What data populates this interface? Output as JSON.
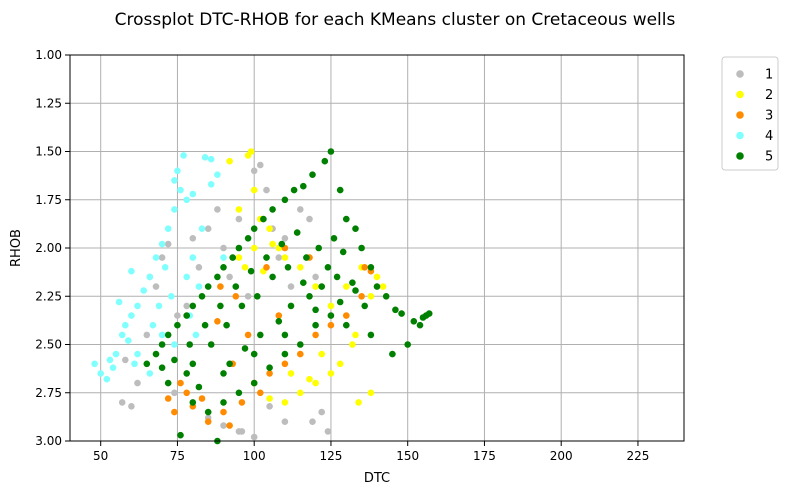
{
  "chart_data": {
    "type": "scatter",
    "title": "Crossplot DTC-RHOB for each KMeans cluster on Cretaceous wells",
    "xlabel": "DTC",
    "ylabel": "RHOB",
    "xlim": [
      40,
      240
    ],
    "ylim": [
      3.0,
      1.0
    ],
    "y_inverted": true,
    "grid": true,
    "legend_position": "outside-top-right",
    "x_ticks": [
      50,
      75,
      100,
      125,
      150,
      175,
      200,
      225
    ],
    "x_tick_labels": [
      "50",
      "75",
      "100",
      "125",
      "150",
      "175",
      "200",
      "225"
    ],
    "y_ticks": [
      1.0,
      1.25,
      1.5,
      1.75,
      2.0,
      2.25,
      2.5,
      2.75,
      3.0
    ],
    "y_tick_labels": [
      "1.00",
      "1.25",
      "1.50",
      "1.75",
      "2.00",
      "2.25",
      "2.50",
      "2.75",
      "3.00"
    ],
    "series": [
      {
        "name": "1",
        "color": "#bdbdbd",
        "points": [
          [
            58,
            2.58
          ],
          [
            62,
            2.7
          ],
          [
            65,
            2.45
          ],
          [
            68,
            2.2
          ],
          [
            70,
            2.05
          ],
          [
            72,
            1.98
          ],
          [
            75,
            2.35
          ],
          [
            78,
            2.3
          ],
          [
            80,
            1.95
          ],
          [
            82,
            2.1
          ],
          [
            85,
            1.9
          ],
          [
            88,
            1.8
          ],
          [
            90,
            2.0
          ],
          [
            92,
            2.15
          ],
          [
            95,
            1.85
          ],
          [
            98,
            2.25
          ],
          [
            100,
            1.6
          ],
          [
            102,
            1.57
          ],
          [
            104,
            1.7
          ],
          [
            106,
            1.9
          ],
          [
            108,
            2.05
          ],
          [
            110,
            1.95
          ],
          [
            112,
            2.2
          ],
          [
            115,
            1.8
          ],
          [
            118,
            1.85
          ],
          [
            120,
            2.15
          ],
          [
            122,
            2.85
          ],
          [
            124,
            2.95
          ],
          [
            110,
            2.9
          ],
          [
            100,
            2.98
          ],
          [
            95,
            2.95
          ],
          [
            90,
            2.92
          ],
          [
            85,
            2.88
          ],
          [
            60,
            2.82
          ],
          [
            57,
            2.8
          ],
          [
            66,
            2.15
          ],
          [
            96,
            2.95
          ],
          [
            105,
            2.82
          ],
          [
            119,
            2.9
          ],
          [
            74,
            2.75
          ]
        ]
      },
      {
        "name": "2",
        "color": "#ffff00",
        "points": [
          [
            92,
            1.55
          ],
          [
            98,
            1.52
          ],
          [
            99,
            1.5
          ],
          [
            100,
            1.7
          ],
          [
            95,
            1.8
          ],
          [
            102,
            1.85
          ],
          [
            105,
            1.9
          ],
          [
            108,
            2.0
          ],
          [
            110,
            2.05
          ],
          [
            100,
            2.0
          ],
          [
            97,
            2.1
          ],
          [
            115,
            2.1
          ],
          [
            120,
            2.2
          ],
          [
            125,
            2.3
          ],
          [
            130,
            2.2
          ],
          [
            135,
            2.1
          ],
          [
            138,
            2.25
          ],
          [
            140,
            2.15
          ],
          [
            142,
            2.2
          ],
          [
            132,
            2.5
          ],
          [
            128,
            2.6
          ],
          [
            120,
            2.7
          ],
          [
            115,
            2.75
          ],
          [
            110,
            2.8
          ],
          [
            134,
            2.8
          ],
          [
            138,
            2.75
          ],
          [
            133,
            2.45
          ],
          [
            125,
            2.65
          ],
          [
            105,
            2.78
          ],
          [
            112,
            2.65
          ],
          [
            118,
            2.68
          ],
          [
            122,
            2.55
          ],
          [
            95,
            2.05
          ],
          [
            103,
            2.12
          ],
          [
            106,
            1.98
          ]
        ]
      },
      {
        "name": "3",
        "color": "#ff8c00",
        "points": [
          [
            72,
            2.78
          ],
          [
            74,
            2.85
          ],
          [
            78,
            2.75
          ],
          [
            80,
            2.82
          ],
          [
            85,
            2.9
          ],
          [
            90,
            2.85
          ],
          [
            92,
            2.92
          ],
          [
            96,
            2.8
          ],
          [
            100,
            2.7
          ],
          [
            102,
            2.75
          ],
          [
            105,
            2.65
          ],
          [
            110,
            2.6
          ],
          [
            115,
            2.55
          ],
          [
            120,
            2.45
          ],
          [
            125,
            2.4
          ],
          [
            130,
            2.35
          ],
          [
            135,
            2.25
          ],
          [
            138,
            2.12
          ],
          [
            136,
            2.1
          ],
          [
            89,
            2.2
          ],
          [
            94,
            2.25
          ],
          [
            104,
            2.1
          ],
          [
            110,
            2.0
          ],
          [
            118,
            2.05
          ],
          [
            88,
            2.38
          ],
          [
            98,
            2.45
          ],
          [
            76,
            2.7
          ],
          [
            83,
            2.78
          ],
          [
            93,
            2.6
          ],
          [
            108,
            2.35
          ]
        ]
      },
      {
        "name": "4",
        "color": "#80ffff",
        "points": [
          [
            48,
            2.6
          ],
          [
            50,
            2.65
          ],
          [
            52,
            2.68
          ],
          [
            54,
            2.62
          ],
          [
            55,
            2.55
          ],
          [
            57,
            2.45
          ],
          [
            58,
            2.4
          ],
          [
            60,
            2.35
          ],
          [
            62,
            2.3
          ],
          [
            64,
            2.22
          ],
          [
            66,
            2.15
          ],
          [
            68,
            2.05
          ],
          [
            70,
            1.98
          ],
          [
            72,
            1.9
          ],
          [
            74,
            1.8
          ],
          [
            76,
            1.7
          ],
          [
            77,
            1.52
          ],
          [
            75,
            1.6
          ],
          [
            80,
            1.72
          ],
          [
            84,
            1.53
          ],
          [
            86,
            1.54
          ],
          [
            88,
            1.62
          ],
          [
            86,
            1.67
          ],
          [
            83,
            1.9
          ],
          [
            80,
            2.05
          ],
          [
            78,
            2.15
          ],
          [
            82,
            2.2
          ],
          [
            60,
            2.12
          ],
          [
            56,
            2.28
          ],
          [
            62,
            2.55
          ],
          [
            66,
            2.65
          ],
          [
            70,
            2.45
          ],
          [
            74,
            2.5
          ],
          [
            53,
            2.58
          ],
          [
            59,
            2.48
          ],
          [
            61,
            2.6
          ],
          [
            69,
            2.3
          ],
          [
            73,
            2.25
          ],
          [
            79,
            2.35
          ],
          [
            71,
            2.1
          ],
          [
            67,
            2.4
          ],
          [
            81,
            2.45
          ],
          [
            78,
            1.75
          ],
          [
            74,
            1.65
          ],
          [
            90,
            2.05
          ]
        ]
      },
      {
        "name": "5",
        "color": "#008000",
        "points": [
          [
            65,
            2.6
          ],
          [
            68,
            2.55
          ],
          [
            70,
            2.5
          ],
          [
            72,
            2.45
          ],
          [
            75,
            2.4
          ],
          [
            78,
            2.35
          ],
          [
            80,
            2.3
          ],
          [
            83,
            2.25
          ],
          [
            85,
            2.2
          ],
          [
            88,
            2.15
          ],
          [
            90,
            2.1
          ],
          [
            93,
            2.05
          ],
          [
            95,
            2.0
          ],
          [
            98,
            1.95
          ],
          [
            100,
            1.9
          ],
          [
            103,
            1.85
          ],
          [
            106,
            1.8
          ],
          [
            110,
            1.75
          ],
          [
            113,
            1.7
          ],
          [
            116,
            1.68
          ],
          [
            119,
            1.62
          ],
          [
            123,
            1.55
          ],
          [
            125,
            1.5
          ],
          [
            128,
            1.7
          ],
          [
            130,
            1.85
          ],
          [
            133,
            1.9
          ],
          [
            135,
            2.0
          ],
          [
            138,
            2.1
          ],
          [
            140,
            2.2
          ],
          [
            143,
            2.25
          ],
          [
            146,
            2.32
          ],
          [
            148,
            2.34
          ],
          [
            152,
            2.38
          ],
          [
            154,
            2.4
          ],
          [
            155,
            2.36
          ],
          [
            156,
            2.35
          ],
          [
            157,
            2.34
          ],
          [
            150,
            2.5
          ],
          [
            145,
            2.55
          ],
          [
            138,
            2.45
          ],
          [
            130,
            2.4
          ],
          [
            125,
            2.35
          ],
          [
            120,
            2.4
          ],
          [
            115,
            2.5
          ],
          [
            110,
            2.55
          ],
          [
            105,
            2.62
          ],
          [
            100,
            2.7
          ],
          [
            95,
            2.75
          ],
          [
            90,
            2.8
          ],
          [
            85,
            2.85
          ],
          [
            80,
            2.8
          ],
          [
            76,
            2.97
          ],
          [
            88,
            3.0
          ],
          [
            82,
            2.72
          ],
          [
            78,
            2.65
          ],
          [
            72,
            2.7
          ],
          [
            92,
            2.6
          ],
          [
            97,
            2.52
          ],
          [
            102,
            2.45
          ],
          [
            108,
            2.38
          ],
          [
            112,
            2.3
          ],
          [
            118,
            2.25
          ],
          [
            122,
            2.2
          ],
          [
            127,
            2.15
          ],
          [
            132,
            2.18
          ],
          [
            136,
            2.3
          ],
          [
            86,
            2.5
          ],
          [
            91,
            2.4
          ],
          [
            96,
            2.3
          ],
          [
            101,
            2.25
          ],
          [
            106,
            2.15
          ],
          [
            111,
            2.1
          ],
          [
            117,
            2.05
          ],
          [
            121,
            2.0
          ],
          [
            114,
            1.92
          ],
          [
            109,
            1.98
          ],
          [
            104,
            2.05
          ],
          [
            99,
            2.12
          ],
          [
            94,
            2.2
          ],
          [
            89,
            2.3
          ],
          [
            84,
            2.4
          ],
          [
            79,
            2.5
          ],
          [
            74,
            2.58
          ],
          [
            70,
            2.62
          ],
          [
            80,
            2.6
          ],
          [
            90,
            2.65
          ],
          [
            100,
            2.55
          ],
          [
            110,
            2.45
          ],
          [
            120,
            2.32
          ],
          [
            128,
            2.28
          ],
          [
            133,
            2.22
          ],
          [
            124,
            2.1
          ],
          [
            116,
            2.18
          ],
          [
            126,
            1.95
          ],
          [
            129,
            2.02
          ]
        ]
      }
    ]
  }
}
